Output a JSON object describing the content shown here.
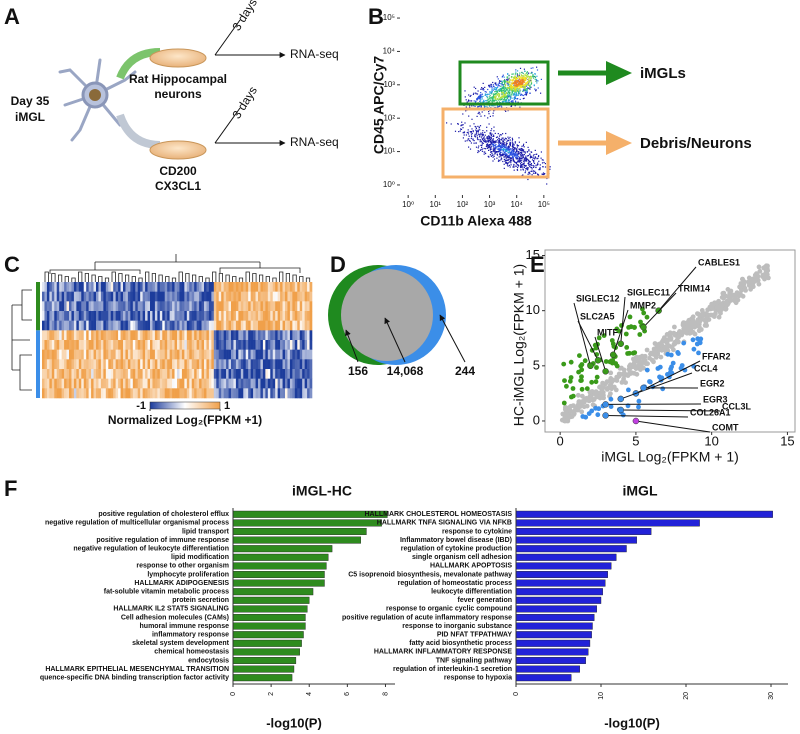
{
  "letters": [
    "A",
    "B",
    "C",
    "D",
    "E",
    "F"
  ],
  "panel_a": {
    "day": "Day 35",
    "cell": "iMGL",
    "top": {
      "dish": "Rat Hippocampal",
      "dish2": "neurons",
      "days": "3 days",
      "assay": "RNA-seq"
    },
    "bottom": {
      "dish": "CD200",
      "dish2": "CX3CL1",
      "days": "3 days",
      "assay": "RNA-seq"
    }
  },
  "chart_data": [
    {
      "type": "flow",
      "xlabel": "CD11b Alexa 488",
      "ylabel": "CD45 APC/Cy7",
      "log": true,
      "xlim": [
        0.5,
        200000
      ],
      "ylim": [
        0.5,
        200000
      ],
      "xticks": [
        {
          "value": 1,
          "label": "10⁰"
        },
        {
          "value": 10,
          "label": "10¹"
        },
        {
          "value": 100,
          "label": "10²"
        },
        {
          "value": 1000,
          "label": "10³"
        },
        {
          "value": 10000,
          "label": "10⁴"
        },
        {
          "value": 100000,
          "label": "10⁵"
        }
      ],
      "yticks": [
        {
          "value": 1,
          "label": "10⁰"
        },
        {
          "value": 10,
          "label": "10¹"
        },
        {
          "value": 100,
          "label": "10²"
        },
        {
          "value": 1000,
          "label": "10³"
        },
        {
          "value": 10000,
          "label": "10⁴"
        },
        {
          "value": 100000,
          "label": "10⁵"
        }
      ],
      "gates": [
        {
          "name": "iMGLs",
          "color": "#1f8a1f"
        },
        {
          "name": "Debris/Neurons",
          "color": "#f5b06a"
        }
      ]
    },
    {
      "type": "heatmap",
      "colorbar_ticks": [
        -1,
        1
      ],
      "colorbar_label": "Normalized Log₂(FPKM +1)",
      "colors": [
        "#1c3c9c",
        "#ffffff",
        "#f0a04a"
      ],
      "group_colors": [
        "#2e8b1e",
        "#3b8ee8"
      ]
    },
    {
      "type": "venn",
      "values": [
        156,
        14068,
        244
      ],
      "value_labels": [
        "156",
        "14,068",
        "244"
      ],
      "colors": [
        "#1f8a1f",
        "#a8a8a8",
        "#3b8ee8"
      ]
    },
    {
      "type": "scatter",
      "xlabel": "iMGL Log₂(FPKM + 1)",
      "ylabel": "HC-iMGL Log₂(FPKM + 1)",
      "xlim": [
        -1,
        15.5
      ],
      "ylim": [
        -1,
        15.5
      ],
      "xticks": [
        0,
        5,
        10,
        15
      ],
      "yticks": [
        0,
        5,
        10,
        15
      ],
      "points": [
        {
          "label": "CABLES1",
          "x": 6.5,
          "y": 10,
          "color": "#3a9a1a"
        },
        {
          "label": "TRIM14",
          "x": 5.5,
          "y": 8.5,
          "color": "#3a9a1a"
        },
        {
          "label": "SIGLEC11",
          "x": 4,
          "y": 7,
          "color": "#3a9a1a"
        },
        {
          "label": "MMP2",
          "x": 3.5,
          "y": 6,
          "color": "#3a9a1a"
        },
        {
          "label": "SIGLEC12",
          "x": 2,
          "y": 5,
          "color": "#3a9a1a"
        },
        {
          "label": "SLC2A5",
          "x": 2.5,
          "y": 5.5,
          "color": "#3a9a1a"
        },
        {
          "label": "MITF",
          "x": 3,
          "y": 4.5,
          "color": "#3a9a1a"
        },
        {
          "label": "FFAR2",
          "x": 5,
          "y": 2.5,
          "color": "#3b8ee8"
        },
        {
          "label": "CCL4",
          "x": 4,
          "y": 2,
          "color": "#3b8ee8"
        },
        {
          "label": "EGR2",
          "x": 5.5,
          "y": 3,
          "color": "#3b8ee8"
        },
        {
          "label": "EGR3",
          "x": 3,
          "y": 1.5,
          "color": "#3b8ee8"
        },
        {
          "label": "CCL3L",
          "x": 4,
          "y": 1,
          "color": "#3b8ee8"
        },
        {
          "label": "COL26A1",
          "x": 3,
          "y": 0.5,
          "color": "#3b8ee8"
        },
        {
          "label": "COMT",
          "x": 5,
          "y": 0,
          "color": "#c040e0"
        }
      ]
    },
    {
      "type": "hbar",
      "title": "iMGL-HC",
      "xlabel": "-log10(P)",
      "color": "#2e8b1e",
      "xlim": [
        0,
        8.5
      ],
      "xticks": [
        0,
        2,
        4,
        6,
        8
      ],
      "categories": [
        "positive regulation of cholesterol efflux",
        "negative regulation of multicellular organismal process",
        "lipid transport",
        "positive regulation of immune response",
        "negative regulation of leukocyte differentiation",
        "lipid modification",
        "response to other organism",
        "lymphocyte proliferation",
        "HALLMARK ADIPOGENESIS",
        "fat-soluble vitamin metabolic process",
        "protein secretion",
        "HALLMARK IL2 STAT5 SIGNALING",
        "Cell adhesion molecules (CAMs)",
        "humoral immune response",
        "inflammatory response",
        "skeletal system development",
        "chemical homeostasis",
        "endocytosis",
        "HALLMARK EPITHELIAL MESENCHYMAL TRANSITION",
        "quence-specific DNA binding transcription factor activity"
      ],
      "values": [
        8.1,
        7.8,
        7.0,
        6.7,
        5.2,
        5.0,
        4.9,
        4.8,
        4.8,
        4.2,
        4.0,
        3.9,
        3.8,
        3.8,
        3.7,
        3.6,
        3.5,
        3.3,
        3.2,
        3.1
      ]
    },
    {
      "type": "hbar",
      "title": "iMGL",
      "xlabel": "-log10(P)",
      "color": "#2222d8",
      "xlim": [
        0,
        32
      ],
      "xticks": [
        0,
        10,
        20,
        30
      ],
      "categories": [
        "HALLMARK CHOLESTEROL HOMEOSTASIS",
        "HALLMARK TNFA SIGNALING VIA NFKB",
        "response to cytokine",
        "Inflammatory bowel disease (IBD)",
        "regulation of cytokine production",
        "single organism cell adhesion",
        "HALLMARK APOPTOSIS",
        "C5 isoprenoid biosynthesis, mevalonate pathway",
        "regulation of homeostatic process",
        "leukocyte differentiation",
        "fever generation",
        "response to organic cyclic compound",
        "positive regulation of acute inflammatory response",
        "response to inorganic substance",
        "PID NFAT TFPATHWAY",
        "fatty acid biosynthetic process",
        "HALLMARK INFLAMMATORY RESPONSE",
        "TNF signaling pathway",
        "regulation of interleukin-1 secretion",
        "response to hypoxia"
      ],
      "values": [
        30.2,
        21.6,
        15.9,
        14.2,
        13.0,
        11.8,
        11.2,
        10.8,
        10.5,
        10.2,
        10.0,
        9.5,
        9.2,
        9.0,
        8.9,
        8.7,
        8.5,
        8.2,
        7.5,
        6.5
      ]
    }
  ]
}
